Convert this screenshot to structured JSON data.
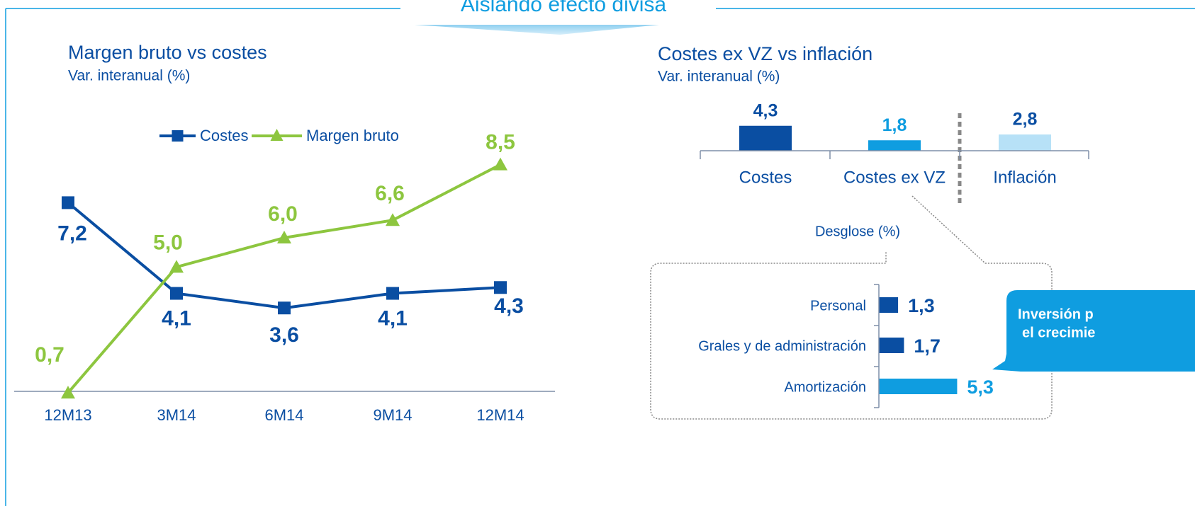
{
  "header": {
    "title": "Aislando efecto divisa"
  },
  "callout": {
    "lines": [
      "Inversión p",
      "el crecimie"
    ]
  },
  "chart_data": [
    {
      "type": "line",
      "title": "Margen bruto vs costes",
      "subtitle": "Var. interanual (%)",
      "categories": [
        "12M13",
        "3M14",
        "6M14",
        "9M14",
        "12M14"
      ],
      "series": [
        {
          "name": "Costes",
          "color": "#0a4ea2",
          "values": [
            7.2,
            4.1,
            3.6,
            4.1,
            4.3
          ],
          "value_labels": [
            "7,2",
            "4,1",
            "3,6",
            "4,1",
            "4,3"
          ]
        },
        {
          "name": "Margen bruto",
          "color": "#8dc63f",
          "values": [
            0.7,
            5.0,
            6.0,
            6.6,
            8.5
          ],
          "value_labels": [
            "0,7",
            "5,0",
            "6,0",
            "6,6",
            "8,5"
          ]
        }
      ],
      "ylim": [
        0,
        9
      ]
    },
    {
      "type": "bar",
      "title": "Costes ex VZ vs inflación",
      "subtitle": "Var. interanual (%)",
      "categories": [
        "Costes",
        "Costes ex VZ",
        "Inflación"
      ],
      "values": [
        4.3,
        1.8,
        2.8
      ],
      "value_labels": [
        "4,3",
        "1,8",
        "2,8"
      ],
      "colors": [
        "#0a4ea2",
        "#0f9de0",
        "#b7e1f7"
      ],
      "label_colors": [
        "#0a4ea2",
        "#0f9de0",
        "#0a4ea2"
      ],
      "ylim": [
        0,
        5
      ]
    },
    {
      "type": "hbar",
      "title": "Desglose (%)",
      "categories": [
        "Personal",
        "Grales y de administración",
        "Amortización"
      ],
      "values": [
        1.3,
        1.7,
        5.3
      ],
      "value_labels": [
        "1,3",
        "1,7",
        "5,3"
      ],
      "colors": [
        "#0a4ea2",
        "#0a4ea2",
        "#0f9de0"
      ],
      "xlim": [
        0,
        6
      ]
    }
  ]
}
